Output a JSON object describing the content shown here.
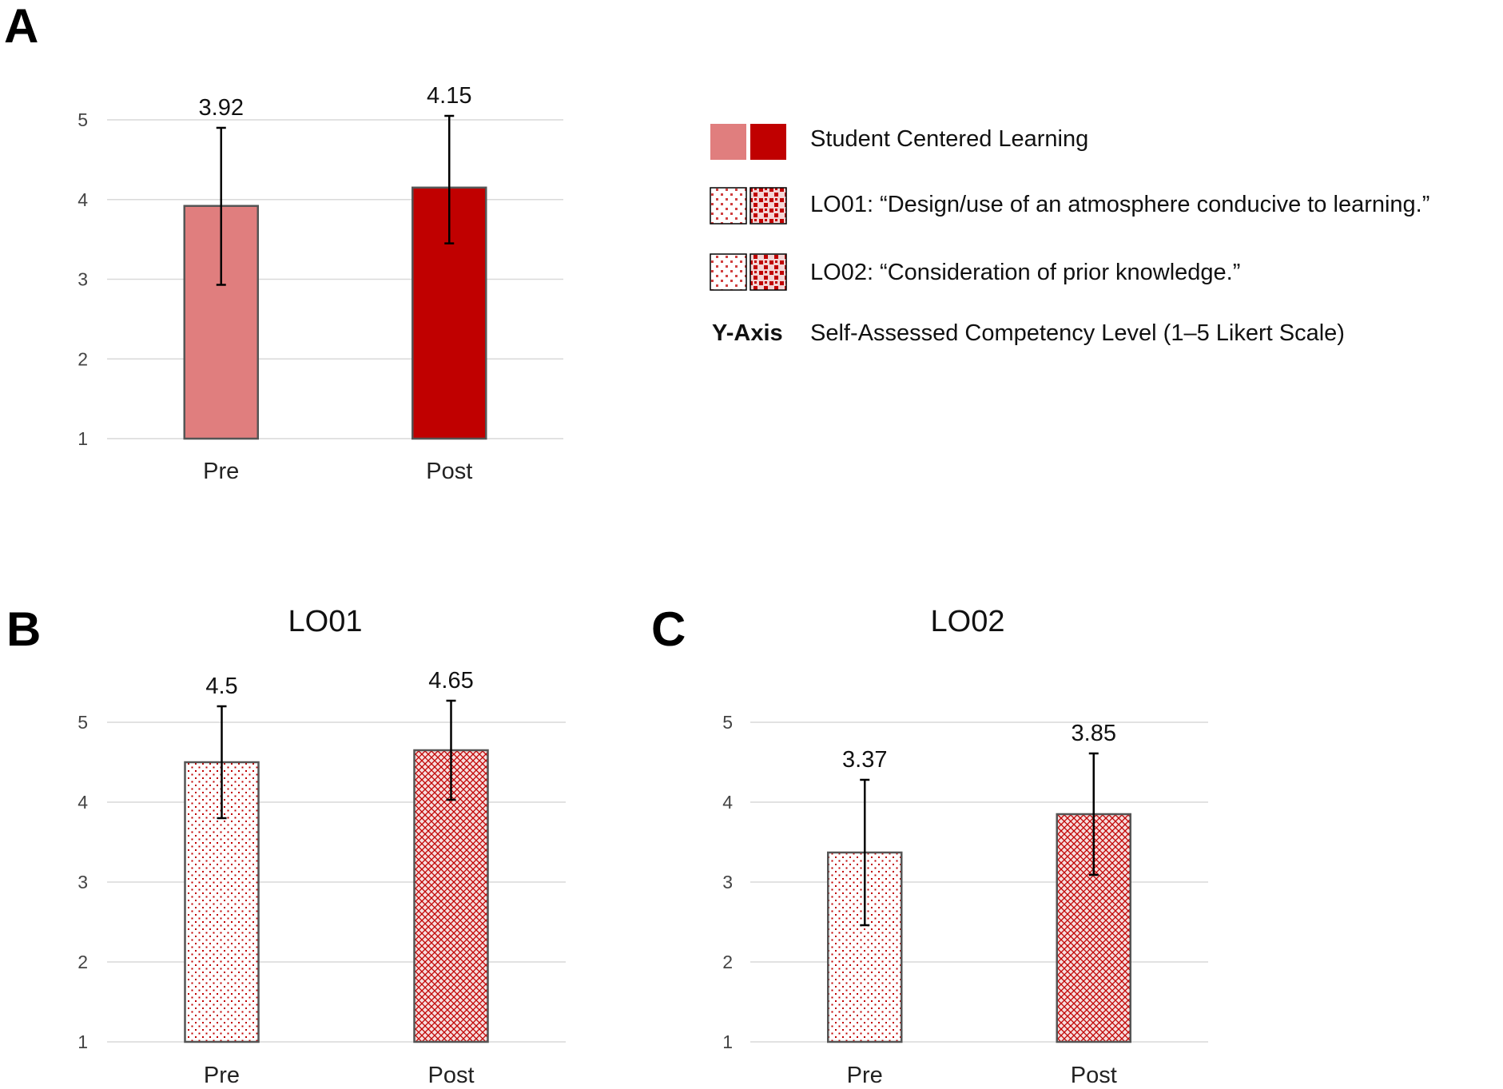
{
  "panels": {
    "a": {
      "letter": "A"
    },
    "b": {
      "letter": "B"
    },
    "c": {
      "letter": "C"
    }
  },
  "legend": {
    "items": [
      {
        "label": "Student Centered Learning",
        "pattern": "solid"
      },
      {
        "label": "LO01: “Design/use of an atmosphere conducive to learning.”",
        "pattern": "dotted"
      },
      {
        "label": "LO02: “Consideration of prior knowledge.”",
        "pattern": "dotted"
      }
    ],
    "yaxis_key": "Y-Axis",
    "yaxis_desc": "Self-Assessed Competency Level (1–5 Likert Scale)"
  },
  "colors": {
    "pre_solid": "#e07e7e",
    "post_solid": "#c00000",
    "pattern_red": "#c00000",
    "bar_border": "#555555",
    "grid": "#d9d9d9",
    "error_bar": "#000000"
  },
  "chart_data": [
    {
      "type": "bar",
      "panel": "A",
      "title": "",
      "categories": [
        "Pre",
        "Post"
      ],
      "values": [
        3.92,
        4.15
      ],
      "data_labels": [
        "3.92",
        "4.15"
      ],
      "error_low": [
        2.93,
        3.45
      ],
      "error_high": [
        4.9,
        5.05
      ],
      "yticks": [
        1,
        2,
        3,
        4,
        5
      ],
      "ylim": [
        1,
        5
      ],
      "ylabel": "",
      "xlabel": "",
      "legend_position": "right"
    },
    {
      "type": "bar",
      "panel": "B",
      "title": "LO01",
      "categories": [
        "Pre",
        "Post"
      ],
      "values": [
        4.5,
        4.65
      ],
      "data_labels": [
        "4.5",
        "4.65"
      ],
      "error_low": [
        3.8,
        4.03
      ],
      "error_high": [
        5.2,
        5.27
      ],
      "yticks": [
        1,
        2,
        3,
        4,
        5
      ],
      "ylim": [
        1,
        5
      ],
      "ylabel": "",
      "xlabel": ""
    },
    {
      "type": "bar",
      "panel": "C",
      "title": "LO02",
      "categories": [
        "Pre",
        "Post"
      ],
      "values": [
        3.37,
        3.85
      ],
      "data_labels": [
        "3.37",
        "3.85"
      ],
      "error_low": [
        2.46,
        3.09
      ],
      "error_high": [
        4.28,
        4.61
      ],
      "yticks": [
        1,
        2,
        3,
        4,
        5
      ],
      "ylim": [
        1,
        5
      ],
      "ylabel": "",
      "xlabel": ""
    }
  ]
}
